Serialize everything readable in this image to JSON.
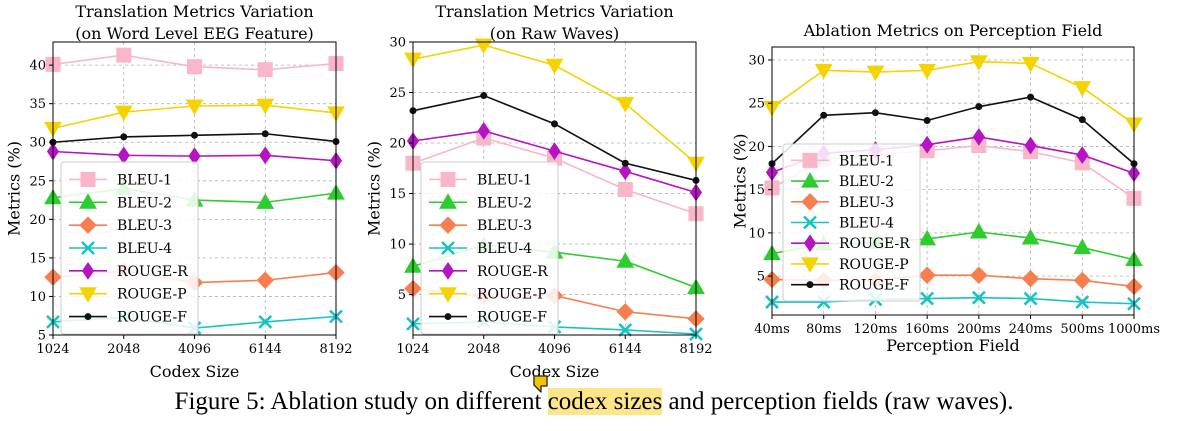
{
  "caption": {
    "before": "Figure 5: Ablation study on different ",
    "highlight": "codex sizes",
    "after": " and perception fields (raw waves)."
  },
  "colors": {
    "BLEU-1": "#f9b6c9",
    "BLEU-2": "#2fcc2f",
    "BLEU-3": "#f77f4f",
    "BLEU-4": "#18c3c3",
    "ROUGE-R": "#b514c3",
    "ROUGE-P": "#f5d300",
    "ROUGE-F": "#111111",
    "highlight": "#fde58a"
  },
  "chart_data": [
    {
      "type": "line",
      "title": "Translation Metrics Variation\n(on Word Level EEG Feature)",
      "xlabel": "Codex Size",
      "ylabel": "Metrics (%)",
      "categories": [
        "1024",
        "2048",
        "4096",
        "6144",
        "8192"
      ],
      "ylim": [
        5,
        43
      ],
      "yticks": [
        5,
        10,
        15,
        20,
        25,
        30,
        35,
        40
      ],
      "grid": true,
      "legend": "left-middle",
      "series": [
        {
          "name": "BLEU-1",
          "values": [
            40.1,
            41.3,
            39.8,
            39.4,
            40.2
          ]
        },
        {
          "name": "BLEU-2",
          "values": [
            22.8,
            24.0,
            22.5,
            22.2,
            23.4
          ]
        },
        {
          "name": "BLEU-3",
          "values": [
            12.5,
            13.3,
            11.8,
            12.1,
            13.1
          ]
        },
        {
          "name": "BLEU-4",
          "values": [
            6.7,
            7.3,
            5.9,
            6.7,
            7.4
          ]
        },
        {
          "name": "ROUGE-R",
          "values": [
            28.8,
            28.3,
            28.2,
            28.3,
            27.6
          ]
        },
        {
          "name": "ROUGE-P",
          "values": [
            31.8,
            33.9,
            34.7,
            34.8,
            33.8
          ]
        },
        {
          "name": "ROUGE-F",
          "values": [
            30.0,
            30.7,
            30.9,
            31.1,
            30.1
          ]
        }
      ]
    },
    {
      "type": "line",
      "title": "Translation Metrics Variation\n(on Raw Waves)",
      "xlabel": "Codex Size",
      "ylabel": "Metrics (%)",
      "categories": [
        "1024",
        "2048",
        "4096",
        "6144",
        "8192"
      ],
      "ylim": [
        1,
        30
      ],
      "yticks": [
        5,
        10,
        15,
        20,
        25,
        30
      ],
      "grid": true,
      "legend": "left-lower",
      "series": [
        {
          "name": "BLEU-1",
          "values": [
            18.0,
            20.5,
            18.5,
            15.4,
            13.0
          ]
        },
        {
          "name": "BLEU-2",
          "values": [
            7.8,
            9.9,
            9.2,
            8.3,
            5.7
          ]
        },
        {
          "name": "BLEU-3",
          "values": [
            5.6,
            4.8,
            4.9,
            3.3,
            2.6
          ]
        },
        {
          "name": "BLEU-4",
          "values": [
            2.1,
            2.3,
            1.8,
            1.5,
            1.1
          ]
        },
        {
          "name": "ROUGE-R",
          "values": [
            20.2,
            21.2,
            19.2,
            17.2,
            15.1
          ]
        },
        {
          "name": "ROUGE-P",
          "values": [
            28.3,
            29.7,
            27.7,
            23.9,
            18.0
          ]
        },
        {
          "name": "ROUGE-F",
          "values": [
            23.2,
            24.7,
            21.9,
            18.0,
            16.3
          ]
        }
      ]
    },
    {
      "type": "line",
      "title": "Ablation Metrics on Perception Field",
      "xlabel": "Perception Field",
      "ylabel": "Metrics (%)",
      "categories": [
        "40ms",
        "80ms",
        "120ms",
        "160ms",
        "200ms",
        "240ms",
        "500ms",
        "1000ms"
      ],
      "ylim": [
        0.5,
        31.5
      ],
      "yticks": [
        5,
        10,
        15,
        20,
        25,
        30
      ],
      "grid": true,
      "legend": "left-middle",
      "series": [
        {
          "name": "BLEU-1",
          "values": [
            15.2,
            18.5,
            19.0,
            19.5,
            20.1,
            19.4,
            18.1,
            14.0
          ]
        },
        {
          "name": "BLEU-2",
          "values": [
            7.6,
            8.7,
            8.9,
            9.3,
            10.1,
            9.4,
            8.3,
            6.9
          ]
        },
        {
          "name": "BLEU-3",
          "values": [
            4.6,
            4.5,
            4.5,
            5.1,
            5.1,
            4.7,
            4.5,
            3.8
          ]
        },
        {
          "name": "BLEU-4",
          "values": [
            2.0,
            2.0,
            2.3,
            2.4,
            2.5,
            2.4,
            2.0,
            1.8
          ]
        },
        {
          "name": "ROUGE-R",
          "values": [
            17.0,
            19.2,
            19.6,
            20.2,
            21.1,
            20.1,
            19.0,
            16.9
          ]
        },
        {
          "name": "ROUGE-P",
          "values": [
            24.5,
            28.8,
            28.6,
            28.8,
            29.8,
            29.6,
            26.8,
            22.6
          ]
        },
        {
          "name": "ROUGE-F",
          "values": [
            18.0,
            23.6,
            23.9,
            23.0,
            24.6,
            25.7,
            23.1,
            18.0
          ]
        }
      ]
    }
  ]
}
